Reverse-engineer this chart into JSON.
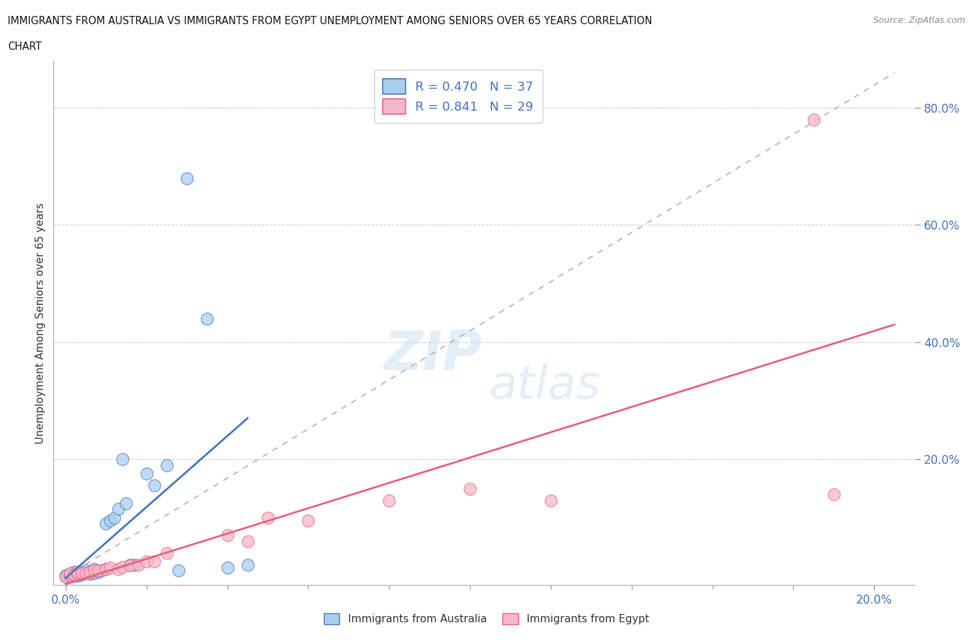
{
  "title_line1": "IMMIGRANTS FROM AUSTRALIA VS IMMIGRANTS FROM EGYPT UNEMPLOYMENT AMONG SENIORS OVER 65 YEARS CORRELATION",
  "title_line2": "CHART",
  "source": "Source: ZipAtlas.com",
  "ylabel": "Unemployment Among Seniors over 65 years",
  "color_australia": "#aacfee",
  "color_egypt": "#f5b8c8",
  "color_australia_line": "#4472c4",
  "color_egypt_line": "#e8607a",
  "color_diagonal": "#b0b0b0",
  "ytick_labels": [
    "20.0%",
    "40.0%",
    "60.0%",
    "80.0%"
  ],
  "ytick_values": [
    0.2,
    0.4,
    0.6,
    0.8
  ],
  "xtick_labels": [
    "0.0%",
    "20.0%"
  ],
  "xtick_values": [
    0.0,
    0.2
  ],
  "watermark_top": "ZIP",
  "watermark_bot": "atlas",
  "xlim": [
    -0.003,
    0.21
  ],
  "ylim": [
    -0.015,
    0.88
  ],
  "australia_x": [
    0.0,
    0.0,
    0.001,
    0.001,
    0.002,
    0.002,
    0.002,
    0.003,
    0.003,
    0.003,
    0.004,
    0.004,
    0.005,
    0.005,
    0.006,
    0.006,
    0.007,
    0.007,
    0.008,
    0.009,
    0.01,
    0.01,
    0.011,
    0.012,
    0.013,
    0.014,
    0.015,
    0.016,
    0.017,
    0.02,
    0.022,
    0.025,
    0.028,
    0.03,
    0.035,
    0.04,
    0.045
  ],
  "australia_y": [
    0.0,
    0.002,
    0.001,
    0.003,
    0.002,
    0.005,
    0.008,
    0.001,
    0.004,
    0.006,
    0.003,
    0.007,
    0.005,
    0.01,
    0.004,
    0.008,
    0.006,
    0.012,
    0.008,
    0.01,
    0.09,
    0.012,
    0.095,
    0.1,
    0.115,
    0.2,
    0.125,
    0.02,
    0.02,
    0.175,
    0.155,
    0.19,
    0.01,
    0.68,
    0.44,
    0.015,
    0.02
  ],
  "egypt_x": [
    0.0,
    0.001,
    0.001,
    0.002,
    0.003,
    0.003,
    0.004,
    0.005,
    0.006,
    0.007,
    0.008,
    0.01,
    0.011,
    0.013,
    0.014,
    0.016,
    0.018,
    0.02,
    0.022,
    0.025,
    0.04,
    0.045,
    0.05,
    0.06,
    0.08,
    0.1,
    0.12,
    0.185,
    0.19
  ],
  "egypt_y": [
    0.0,
    0.002,
    0.005,
    0.003,
    0.004,
    0.008,
    0.006,
    0.005,
    0.008,
    0.01,
    0.01,
    0.012,
    0.015,
    0.013,
    0.016,
    0.018,
    0.02,
    0.025,
    0.025,
    0.04,
    0.07,
    0.06,
    0.1,
    0.095,
    0.13,
    0.15,
    0.13,
    0.78,
    0.14
  ],
  "legend_text1": "R = 0.470   N = 37",
  "legend_text2": "R = 0.841   N = 29"
}
